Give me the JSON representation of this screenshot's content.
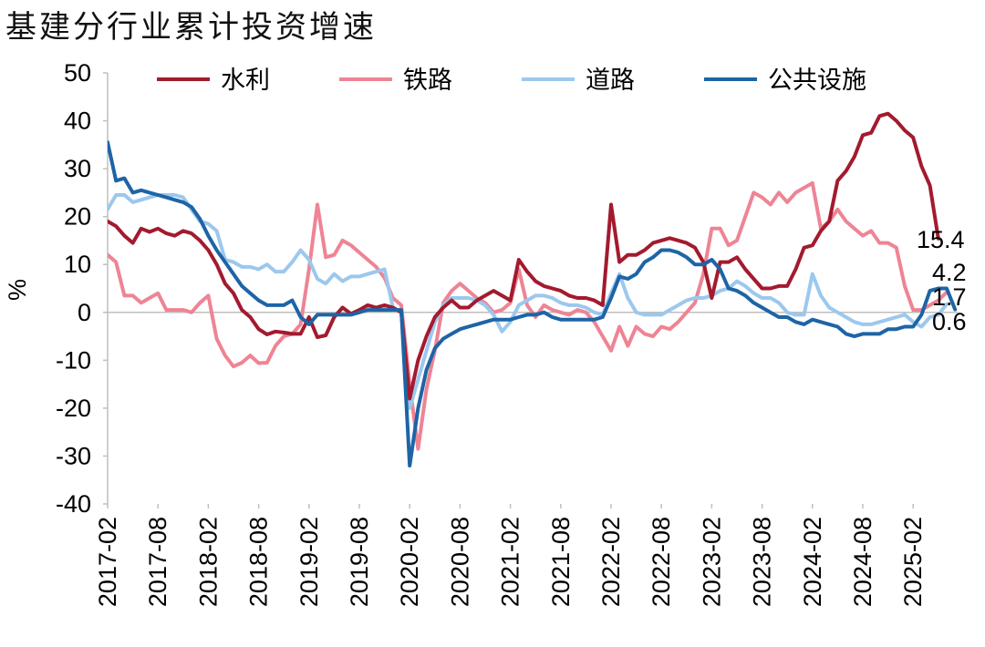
{
  "title": "基建分行业累计投资增速",
  "chart_data": {
    "type": "line",
    "ylabel": "%",
    "ylim": [
      -40,
      50
    ],
    "yticks": [
      50,
      40,
      30,
      20,
      10,
      0,
      -10,
      -20,
      -30,
      -40
    ],
    "xticks": [
      "2017-02",
      "2017-08",
      "2018-02",
      "2018-08",
      "2019-02",
      "2019-08",
      "2020-02",
      "2020-08",
      "2021-02",
      "2021-08",
      "2022-02",
      "2022-08",
      "2023-02",
      "2023-08",
      "2024-02",
      "2024-08",
      "2025-02"
    ],
    "legend_position": "top",
    "colors": {
      "水利": "#A31A2E",
      "铁路": "#EE8494",
      "道路": "#9CC8EE",
      "公共设施": "#1E64A6"
    },
    "end_labels": [
      "15.4",
      "4.2",
      "1.7",
      "0.6"
    ],
    "x_start": "2017-02",
    "x_end": "2025-06",
    "series": [
      {
        "name": "水利",
        "values": [
          19,
          18,
          16,
          14.5,
          17.5,
          16.8,
          17.5,
          16.5,
          16,
          17,
          16.5,
          15,
          13,
          10,
          6,
          4,
          0.5,
          -1,
          -3.5,
          -4.6,
          -4,
          -4.2,
          -4.5,
          -4.5,
          -1,
          -5.2,
          -4.8,
          -1,
          1,
          -0.3,
          0.5,
          1.5,
          1,
          1.5,
          1,
          0,
          -18,
          -10,
          -5,
          -1,
          1,
          2.5,
          1,
          1,
          2.5,
          3.5,
          4.5,
          3.5,
          2.5,
          11,
          8.5,
          6.5,
          5.5,
          5,
          4.5,
          3.5,
          3,
          3,
          2.5,
          1.5,
          22.5,
          10.5,
          12,
          12,
          13,
          14.5,
          15,
          15.5,
          15,
          14.5,
          13.5,
          10.5,
          3,
          10.5,
          10.5,
          11.5,
          9,
          7,
          5,
          5,
          5.5,
          5.5,
          9,
          13.5,
          14,
          17,
          19,
          27.5,
          29.5,
          32.5,
          37,
          37.5,
          41,
          41.5,
          40,
          38,
          36.5,
          30.5,
          26.5,
          15.4
        ]
      },
      {
        "name": "铁路",
        "values": [
          12,
          10.5,
          3.5,
          3.5,
          2,
          3,
          4,
          0.5,
          0.5,
          0.5,
          0,
          2,
          3.5,
          -5.5,
          -9,
          -11.3,
          -10.5,
          -9,
          -10.6,
          -10.5,
          -7,
          -5,
          -4.5,
          -2.5,
          9,
          22.5,
          11.5,
          12,
          15,
          14,
          12.5,
          11,
          9.5,
          7.2,
          3,
          1.5,
          -15,
          -28.5,
          -16,
          -8,
          2,
          4.5,
          6,
          4.5,
          3,
          2,
          0,
          0.5,
          2,
          9,
          1.5,
          -1,
          1.5,
          0.5,
          0,
          -0.5,
          0.5,
          0,
          -2,
          -5,
          -8,
          -3,
          -7,
          -3,
          -4.5,
          -5,
          -3,
          -3.5,
          -2,
          0,
          2,
          8,
          17.5,
          17.5,
          14,
          15,
          20,
          25,
          24,
          22.5,
          25,
          23,
          25,
          26,
          27,
          17.5,
          19,
          21.5,
          19,
          17.5,
          16,
          17,
          14.5,
          14.5,
          13.5,
          5.5,
          0.5,
          0.5,
          1.5,
          2.5,
          4.2
        ]
      },
      {
        "name": "道路",
        "values": [
          21.5,
          24.5,
          24.5,
          23,
          23.5,
          24,
          24.5,
          24.5,
          24.5,
          24,
          21.5,
          19,
          18.5,
          17,
          11,
          10.5,
          9.5,
          9.5,
          9,
          10,
          8.5,
          8.5,
          10.5,
          13,
          11,
          7,
          6,
          8,
          6.5,
          7.5,
          7.5,
          8,
          8.5,
          9,
          1,
          0,
          -20,
          -14,
          -8,
          -2,
          1.5,
          3,
          3,
          3,
          2.5,
          1.5,
          -0.5,
          -4,
          -2,
          1.5,
          2.5,
          3.5,
          3.5,
          3,
          2,
          1.5,
          1.5,
          1,
          0,
          -0.5,
          4,
          8,
          3,
          0,
          -0.5,
          -0.5,
          -0.5,
          0.5,
          1.5,
          2.5,
          3,
          3,
          3.5,
          4.5,
          5,
          6.5,
          5.5,
          4,
          3,
          3,
          2,
          0,
          -0.5,
          -0.5,
          8,
          3.5,
          1,
          0,
          -1,
          -2,
          -2.5,
          -2.5,
          -2,
          -1.5,
          -1,
          -0.5,
          -2,
          -3,
          -1,
          -0.5,
          1.7
        ]
      },
      {
        "name": "公共设施",
        "values": [
          35.5,
          27.5,
          28,
          25,
          25.5,
          25,
          24.5,
          24,
          23.5,
          23,
          22,
          19.5,
          16,
          13,
          10.5,
          8,
          5.5,
          4,
          2.5,
          1.5,
          1.5,
          1.5,
          2.5,
          -1,
          -2.5,
          -0.5,
          -0.5,
          -0.5,
          -0.5,
          -0.5,
          0,
          0.5,
          0.5,
          0.5,
          0.5,
          0.5,
          -32,
          -20,
          -12,
          -7.5,
          -5.5,
          -4.5,
          -3.5,
          -3,
          -2.5,
          -2,
          -1.5,
          -1.5,
          -1.5,
          -1,
          -0.5,
          -0.5,
          0,
          -1,
          -1.5,
          -1.5,
          -1.5,
          -1.5,
          -1.5,
          -1,
          3,
          7.5,
          7,
          8,
          10.5,
          11.5,
          13,
          13,
          12.5,
          11.5,
          10,
          10,
          11,
          9,
          5,
          4.5,
          3.5,
          2,
          1,
          0,
          -1,
          -1,
          -2,
          -2.5,
          -1.5,
          -2,
          -2.5,
          -3,
          -4.5,
          -5,
          -4.5,
          -4.5,
          -4.5,
          -3.5,
          -3.5,
          -3,
          -3,
          -0.5,
          4.5,
          5,
          5,
          0.6
        ]
      }
    ]
  }
}
